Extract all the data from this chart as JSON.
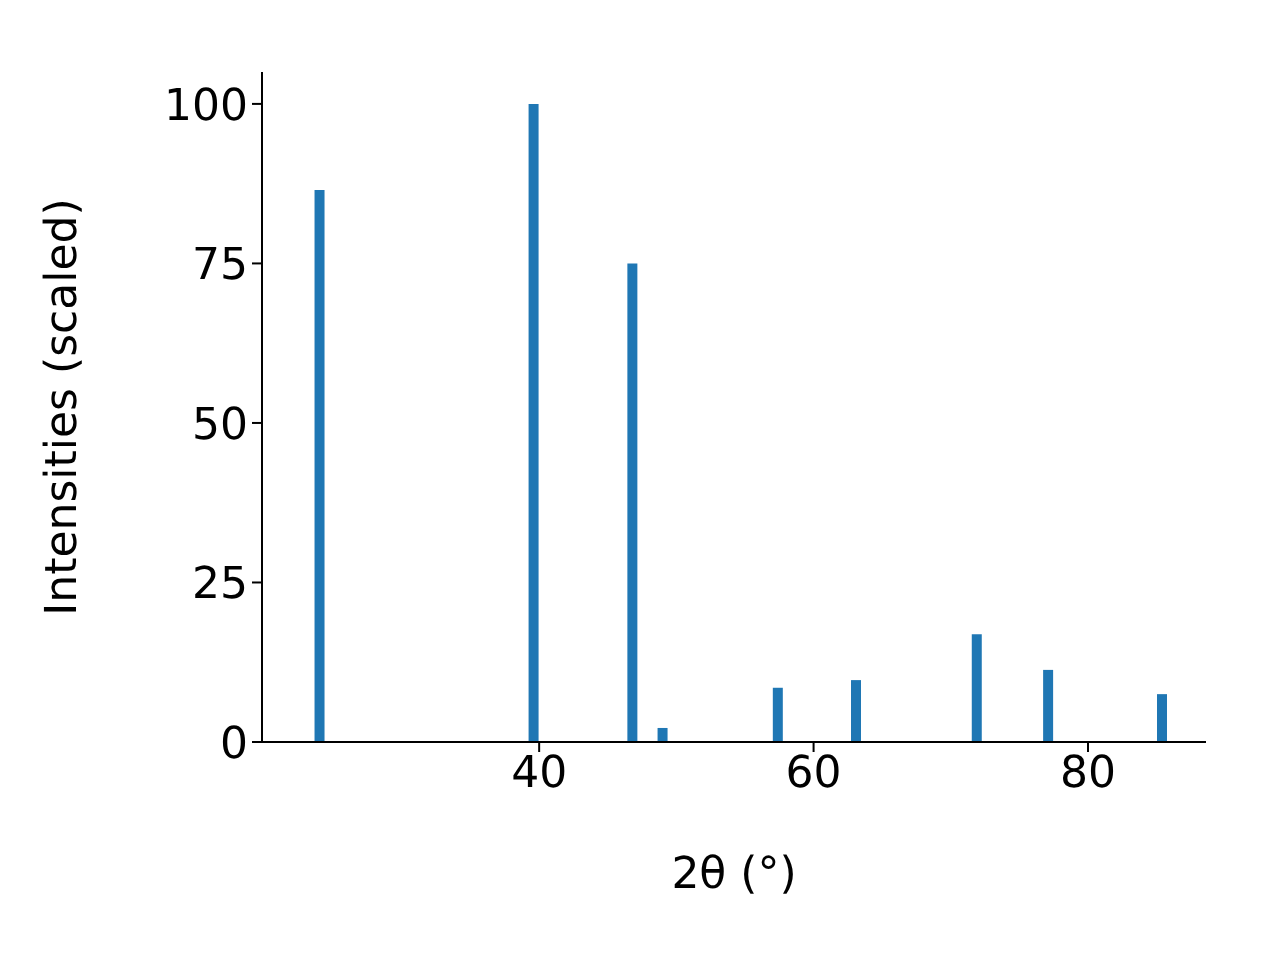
{
  "chart_data": {
    "type": "bar",
    "xlabel": "2θ (°)",
    "ylabel": "Intensities (scaled)",
    "x": [
      24.0,
      39.6,
      46.8,
      49.0,
      57.4,
      63.1,
      71.9,
      77.1,
      85.4
    ],
    "values": [
      86.5,
      100,
      75,
      2.2,
      8.5,
      9.7,
      16.9,
      11.3,
      7.5
    ],
    "color": "#1f77b4",
    "xlim": [
      19.8,
      88.6
    ],
    "xticks": [
      40,
      60,
      80
    ],
    "ylim": [
      0,
      105
    ],
    "yticks": [
      0,
      25,
      50,
      75,
      100
    ],
    "grid": false,
    "legend": false
  }
}
